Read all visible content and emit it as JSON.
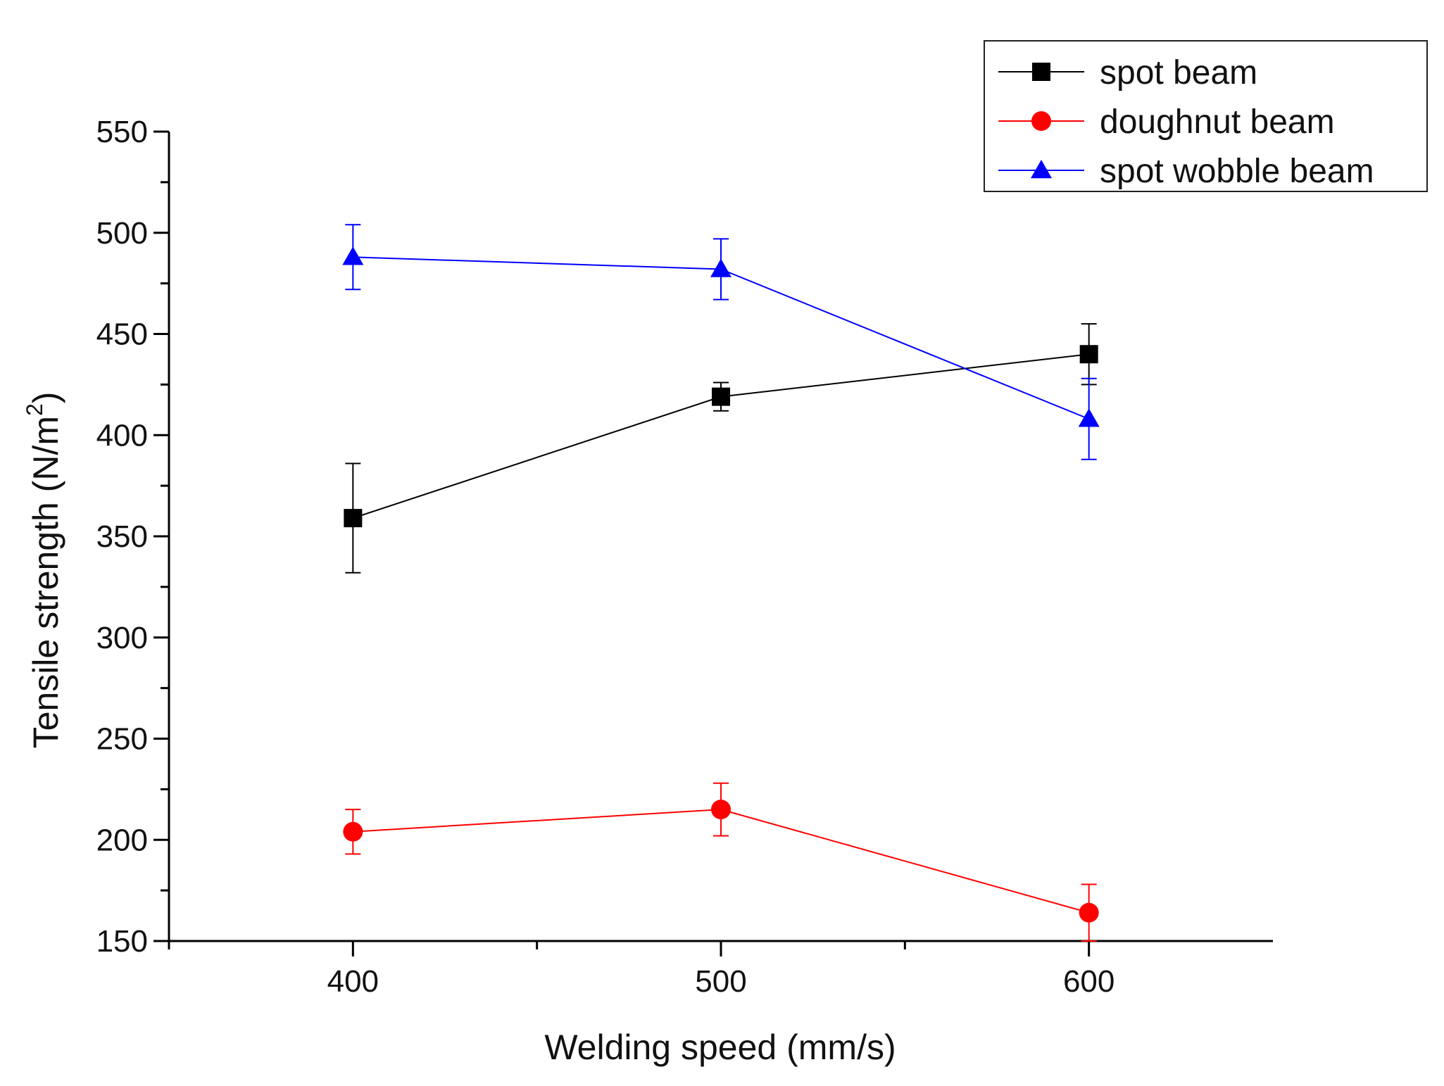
{
  "chart_data": {
    "type": "line",
    "title": "",
    "xlabel": "Welding speed (mm/s)",
    "ylabel": {
      "text": "Tensile strength (N/m",
      "superscript": "2",
      "suffix": ")"
    },
    "x": [
      400,
      500,
      600
    ],
    "xlim": [
      350,
      650
    ],
    "ylim": [
      150,
      550
    ],
    "x_ticks": [
      400,
      500,
      600
    ],
    "y_ticks": [
      150,
      200,
      250,
      300,
      350,
      400,
      450,
      500,
      550
    ],
    "x_tick_labels": [
      "400",
      "500",
      "600"
    ],
    "y_tick_labels": [
      "150",
      "200",
      "250",
      "300",
      "350",
      "400",
      "450",
      "500",
      "550"
    ],
    "grid": false,
    "legend_position": "top-right",
    "series": [
      {
        "name": "spot beam",
        "marker": "square",
        "color": "#000000",
        "values": [
          359,
          419,
          440
        ],
        "errors": [
          27,
          7,
          15
        ]
      },
      {
        "name": "doughnut beam",
        "marker": "circle",
        "color": "#ff0000",
        "values": [
          204,
          215,
          164
        ],
        "errors": [
          11,
          13,
          14
        ]
      },
      {
        "name": "spot wobble beam",
        "marker": "triangle",
        "color": "#0000ff",
        "values": [
          488,
          482,
          408
        ],
        "errors": [
          16,
          15,
          20
        ]
      }
    ]
  }
}
